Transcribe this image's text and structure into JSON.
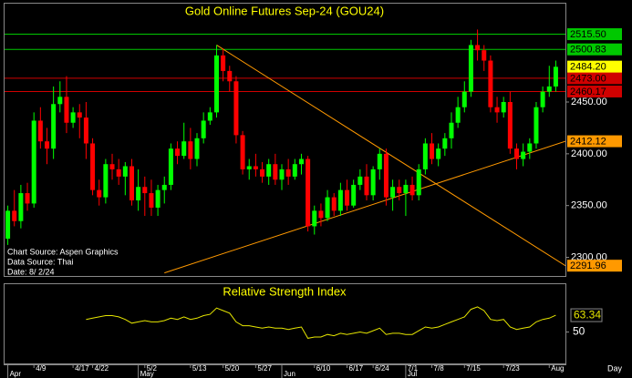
{
  "chart_data": [
    {
      "type": "candlestick",
      "title": "Gold Online Futures Sep-24 (GOU24)",
      "annotations": [
        "Chart Source: Aspen Graphics",
        "Data Source: Thai",
        "Date: 8/ 2/24"
      ],
      "period_label": "Day",
      "up_color": "#00ff00",
      "down_color": "#ff0000",
      "categories": [
        null,
        null,
        null,
        null,
        "4/9",
        null,
        null,
        null,
        null,
        null,
        "4/17",
        null,
        null,
        "4/22",
        null,
        null,
        null,
        null,
        null,
        null,
        null,
        "5/2",
        null,
        null,
        null,
        null,
        null,
        null,
        "5/13",
        null,
        null,
        null,
        null,
        "5/20",
        null,
        null,
        null,
        null,
        "5/27",
        null,
        null,
        null,
        null,
        null,
        null,
        null,
        null,
        "6/10",
        null,
        null,
        null,
        null,
        "6/17",
        null,
        null,
        null,
        "6/24",
        null,
        null,
        null,
        null,
        "7/1",
        null,
        null,
        null,
        "7/8",
        null,
        null,
        null,
        null,
        "7/15",
        null,
        null,
        null,
        null,
        null,
        "7/23",
        null,
        null,
        null,
        null,
        null,
        null,
        "Aug",
        null
      ],
      "month_labels": [
        "Apr",
        null,
        null,
        null,
        null,
        null,
        null,
        null,
        null,
        null,
        null,
        null,
        null,
        null,
        null,
        null,
        null,
        null,
        null,
        null,
        "May",
        null,
        null,
        null,
        null,
        null,
        null,
        null,
        null,
        null,
        null,
        null,
        null,
        null,
        null,
        null,
        null,
        null,
        null,
        null,
        null,
        null,
        "Jun",
        null,
        null,
        null,
        null,
        null,
        null,
        null,
        null,
        null,
        null,
        null,
        null,
        null,
        null,
        null,
        null,
        null,
        null,
        "Jul",
        null,
        null,
        null,
        null,
        null,
        null,
        null,
        null,
        null,
        null,
        null,
        null,
        null,
        null,
        null,
        null,
        null,
        null,
        null,
        null,
        null,
        null,
        null
      ],
      "open": [
        2318,
        2345,
        2335,
        2362,
        2352,
        2432,
        2412,
        2405,
        2448,
        2455,
        2430,
        2440,
        2435,
        2410,
        2365,
        2358,
        2390,
        2385,
        2378,
        2388,
        2355,
        2368,
        2362,
        2348,
        2365,
        2370,
        2405,
        2398,
        2412,
        2395,
        2415,
        2432,
        2440,
        2495,
        2480,
        2470,
        2418,
        2385,
        2388,
        2385,
        2378,
        2390,
        2375,
        2385,
        2378,
        2390,
        2395,
        2330,
        2345,
        2338,
        2358,
        2345,
        2365,
        2350,
        2370,
        2378,
        2360,
        2385,
        2400,
        2358,
        2368,
        2362,
        2370,
        2360,
        2385,
        2410,
        2395,
        2405,
        2415,
        2430,
        2445,
        2460,
        2505,
        2500,
        2490,
        2445,
        2440,
        2450,
        2405,
        2395,
        2402,
        2410,
        2445,
        2460,
        2465
      ],
      "high": [
        2350,
        2365,
        2370,
        2372,
        2440,
        2445,
        2425,
        2465,
        2470,
        2475,
        2445,
        2448,
        2450,
        2415,
        2375,
        2395,
        2400,
        2395,
        2392,
        2395,
        2385,
        2378,
        2375,
        2370,
        2378,
        2410,
        2412,
        2430,
        2425,
        2420,
        2440,
        2445,
        2505,
        2502,
        2485,
        2475,
        2422,
        2395,
        2400,
        2392,
        2395,
        2400,
        2390,
        2395,
        2395,
        2400,
        2398,
        2350,
        2352,
        2365,
        2362,
        2372,
        2375,
        2375,
        2385,
        2390,
        2388,
        2405,
        2405,
        2375,
        2375,
        2375,
        2378,
        2390,
        2415,
        2420,
        2410,
        2420,
        2440,
        2455,
        2470,
        2510,
        2520,
        2505,
        2495,
        2455,
        2455,
        2460,
        2410,
        2410,
        2415,
        2450,
        2465,
        2485,
        2490
      ],
      "low": [
        2312,
        2330,
        2328,
        2345,
        2348,
        2405,
        2390,
        2395,
        2440,
        2420,
        2425,
        2415,
        2395,
        2360,
        2350,
        2352,
        2375,
        2370,
        2360,
        2350,
        2345,
        2340,
        2340,
        2340,
        2352,
        2365,
        2390,
        2395,
        2385,
        2388,
        2410,
        2428,
        2435,
        2470,
        2460,
        2410,
        2380,
        2375,
        2378,
        2372,
        2370,
        2370,
        2365,
        2370,
        2375,
        2380,
        2325,
        2322,
        2330,
        2335,
        2340,
        2340,
        2345,
        2348,
        2365,
        2355,
        2355,
        2375,
        2350,
        2345,
        2355,
        2340,
        2355,
        2355,
        2380,
        2390,
        2388,
        2398,
        2405,
        2425,
        2440,
        2455,
        2490,
        2480,
        2440,
        2430,
        2435,
        2400,
        2385,
        2388,
        2395,
        2405,
        2440,
        2455,
        2460
      ],
      "close": [
        2345,
        2335,
        2362,
        2352,
        2432,
        2412,
        2405,
        2448,
        2455,
        2430,
        2440,
        2435,
        2410,
        2365,
        2358,
        2390,
        2385,
        2378,
        2388,
        2355,
        2368,
        2362,
        2348,
        2365,
        2370,
        2405,
        2398,
        2412,
        2395,
        2415,
        2432,
        2440,
        2495,
        2480,
        2470,
        2418,
        2385,
        2388,
        2385,
        2378,
        2390,
        2375,
        2385,
        2378,
        2390,
        2395,
        2330,
        2345,
        2338,
        2358,
        2345,
        2365,
        2350,
        2370,
        2378,
        2360,
        2385,
        2400,
        2358,
        2368,
        2362,
        2370,
        2360,
        2385,
        2410,
        2395,
        2405,
        2415,
        2430,
        2445,
        2460,
        2505,
        2500,
        2490,
        2445,
        2440,
        2450,
        2405,
        2395,
        2402,
        2410,
        2445,
        2460,
        2465,
        2484
      ],
      "last_price": {
        "value": 2484.2,
        "label": "2484.20"
      },
      "levels": [
        {
          "value": 2515.5,
          "label": "2515.50",
          "color": "#00c800"
        },
        {
          "value": 2500.83,
          "label": "2500.83",
          "color": "#00c800"
        },
        {
          "value": 2473,
          "label": "2473.00",
          "color": "#d00000"
        },
        {
          "value": 2460.17,
          "label": "2460.17",
          "color": "#d00000"
        }
      ],
      "trendlines": [
        {
          "color": "#ff9900",
          "start": [
            32,
            2505
          ],
          "end": {
            "value": 2291.96,
            "label": "2291.96"
          }
        },
        {
          "color": "#ff9900",
          "start": [
            24,
            2285
          ],
          "end": {
            "value": 2412.12,
            "label": "2412.12"
          }
        }
      ],
      "ylim": [
        2282,
        2545
      ],
      "yticks": [
        {
          "value": 2300,
          "label": "2300.00"
        },
        {
          "value": 2350,
          "label": "2350.00"
        },
        {
          "value": 2400,
          "label": "2400.00"
        },
        {
          "value": 2450,
          "label": "2450.00"
        }
      ]
    },
    {
      "type": "line",
      "title": "Relative Strength Index",
      "color": "#e6e600",
      "values": [
        null,
        null,
        null,
        null,
        null,
        null,
        null,
        null,
        null,
        null,
        null,
        null,
        60,
        61,
        62,
        63,
        63,
        62,
        60,
        57,
        58,
        59,
        58,
        58,
        59,
        61,
        60,
        62,
        60,
        61,
        63,
        64,
        69,
        67,
        65,
        58,
        55,
        55,
        54,
        53,
        54,
        53,
        53,
        52,
        53,
        54,
        45,
        46,
        46,
        48,
        47,
        49,
        48,
        49,
        50,
        49,
        51,
        53,
        48,
        49,
        49,
        48,
        48,
        51,
        54,
        53,
        54,
        56,
        58,
        60,
        62,
        68,
        70,
        67,
        60,
        59,
        60,
        54,
        52,
        53,
        54,
        58,
        60,
        61,
        63.34
      ],
      "ylim": [
        25,
        88
      ],
      "yticks": [
        50
      ]
    }
  ]
}
